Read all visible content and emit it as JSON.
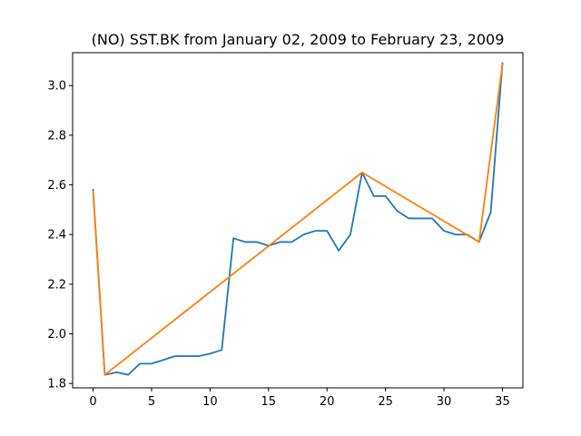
{
  "chart_data": {
    "type": "line",
    "title": "(NO) SST.BK from January 02, 2009 to February 23, 2009",
    "xlabel": "",
    "ylabel": "",
    "xlim": [
      -1.75,
      36.75
    ],
    "ylim": [
      1.7825,
      3.1325
    ],
    "x_ticks": [
      0,
      5,
      10,
      15,
      20,
      25,
      30,
      35
    ],
    "y_ticks": [
      1.8,
      2.0,
      2.2,
      2.4,
      2.6,
      2.8,
      3.0
    ],
    "grid": false,
    "legend": "none",
    "series": [
      {
        "color": "#1f77b4",
        "x": [
          0,
          1,
          2,
          3,
          4,
          5,
          6,
          7,
          8,
          9,
          10,
          11,
          12,
          13,
          14,
          15,
          16,
          17,
          18,
          19,
          20,
          21,
          22,
          23,
          24,
          25,
          26,
          27,
          28,
          29,
          30,
          31,
          32,
          33,
          34,
          35
        ],
        "values": [
          2.58,
          1.835,
          1.845,
          1.835,
          1.88,
          1.88,
          1.895,
          1.91,
          1.91,
          1.91,
          1.92,
          1.935,
          2.385,
          2.37,
          2.37,
          2.355,
          2.37,
          2.37,
          2.4,
          2.415,
          2.415,
          2.335,
          2.4,
          2.65,
          2.555,
          2.555,
          2.495,
          2.465,
          2.465,
          2.465,
          2.415,
          2.4,
          2.4,
          2.37,
          2.49,
          3.09
        ]
      },
      {
        "color": "#ff7f0e",
        "x": [
          0,
          1,
          23,
          33,
          35
        ],
        "values": [
          2.575,
          1.835,
          2.65,
          2.37,
          3.085
        ]
      }
    ]
  }
}
